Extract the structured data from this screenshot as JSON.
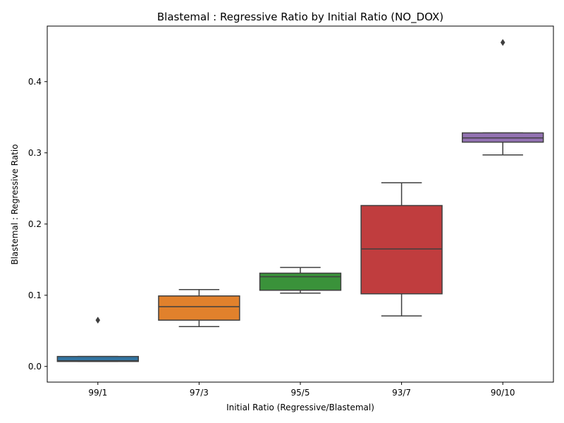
{
  "chart_data": {
    "type": "box",
    "title": "Blastemal : Regressive Ratio by Initial Ratio (NO_DOX)",
    "xlabel": "Initial Ratio (Regressive/Blastemal)",
    "ylabel": "Blastemal : Regressive Ratio",
    "ylim": [
      -0.022,
      0.478
    ],
    "yticks": [
      0.0,
      0.1,
      0.2,
      0.3,
      0.4
    ],
    "ytick_labels": [
      "0.0",
      "0.1",
      "0.2",
      "0.3",
      "0.4"
    ],
    "grid": false,
    "categories": [
      "99/1",
      "97/3",
      "95/5",
      "93/7",
      "90/10"
    ],
    "boxes": [
      {
        "category": "99/1",
        "whisker_low": 0.007,
        "q1": 0.007,
        "median": 0.008,
        "q3": 0.014,
        "whisker_high": 0.014,
        "outliers": [
          0.065
        ],
        "color": "#3274a1"
      },
      {
        "category": "97/3",
        "whisker_low": 0.056,
        "q1": 0.065,
        "median": 0.084,
        "q3": 0.099,
        "whisker_high": 0.108,
        "outliers": [],
        "color": "#e1812c"
      },
      {
        "category": "95/5",
        "whisker_low": 0.103,
        "q1": 0.107,
        "median": 0.126,
        "q3": 0.131,
        "whisker_high": 0.139,
        "outliers": [],
        "color": "#3a923a"
      },
      {
        "category": "93/7",
        "whisker_low": 0.071,
        "q1": 0.102,
        "median": 0.165,
        "q3": 0.226,
        "whisker_high": 0.258,
        "outliers": [],
        "color": "#c03d3e"
      },
      {
        "category": "90/10",
        "whisker_low": 0.297,
        "q1": 0.315,
        "median": 0.321,
        "q3": 0.328,
        "whisker_high": 0.328,
        "outliers": [
          0.455
        ],
        "color": "#9372b2"
      }
    ]
  }
}
